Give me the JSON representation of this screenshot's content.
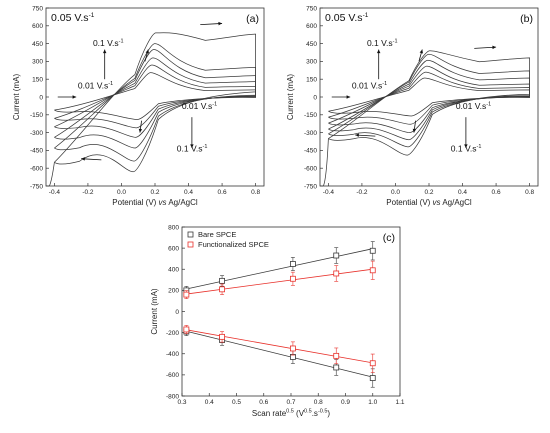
{
  "panel_a": {
    "label": "(a)",
    "top_left_text": "0.05 V.s",
    "top_left_sup": "-1",
    "ann_upper_high": "0.1 V.s",
    "ann_upper_low": "0.01 V.s",
    "ann_lower_low": "0.01 V.s",
    "ann_lower_high": "0.1 V.s",
    "ann_sup": "-1"
  },
  "panel_b": {
    "label": "(b)",
    "top_left_text": "0.05 V.s",
    "top_left_sup": "-1",
    "ann_upper_high": "0.1 V.s",
    "ann_upper_low": "0.01 V.s",
    "ann_lower_low": "0.01 V.s",
    "ann_lower_high": "0.1 V.s",
    "ann_sup": "-1"
  },
  "panel_c": {
    "label": "(c)"
  },
  "shared_xlabel_pre": "Potential (V) ",
  "shared_xlabel_vs": "vs",
  "shared_xlabel_post": " Ag/AgCl",
  "colors": {
    "bare": "#3a3a3a",
    "functionalized": "#e8312b",
    "axis": "#333333"
  },
  "chart_data": [
    {
      "type": "line",
      "panel": "a",
      "xlabel": "Potential (V) vs Ag/AgCl",
      "ylabel": "Current (mA)",
      "xlim": [
        -0.45,
        0.85
      ],
      "ylim": [
        -750,
        750
      ],
      "xticks": [
        "-0.4",
        "-0.2",
        "0.0",
        "0.2",
        "0.4",
        "0.6",
        "0.8"
      ],
      "yticks": [
        "-750",
        "-600",
        "-450",
        "-300",
        "-150",
        "0",
        "150",
        "300",
        "450",
        "600",
        "750"
      ],
      "scans": [
        {
          "anodic_peak": 205,
          "cathodic_peak": -190,
          "upper_end": 60,
          "lower_start": -130
        },
        {
          "anodic_peak": 270,
          "cathodic_peak": -260,
          "upper_end": 90,
          "lower_start": -200
        },
        {
          "anodic_peak": 330,
          "cathodic_peak": -340,
          "upper_end": 130,
          "lower_start": -270
        },
        {
          "anodic_peak": 400,
          "cathodic_peak": -430,
          "upper_end": 180,
          "lower_start": -360
        },
        {
          "anodic_peak": 450,
          "cathodic_peak": -540,
          "upper_end": 250,
          "lower_start": -450
        },
        {
          "anodic_peak": 540,
          "cathodic_peak": -630,
          "upper_end": 530,
          "lower_start": -570
        }
      ]
    },
    {
      "type": "line",
      "panel": "b",
      "xlabel": "Potential (V) vs Ag/AgCl",
      "ylabel": "Current (mA)",
      "xlim": [
        -0.45,
        0.85
      ],
      "ylim": [
        -750,
        750
      ],
      "xticks": [
        "-0.4",
        "-0.2",
        "0.0",
        "0.2",
        "0.4",
        "0.6",
        "0.8"
      ],
      "yticks": [
        "-750",
        "-600",
        "-450",
        "-300",
        "-150",
        "0",
        "150",
        "300",
        "450",
        "600",
        "750"
      ],
      "scans": [
        {
          "anodic_peak": 160,
          "cathodic_peak": -160,
          "upper_end": 60,
          "lower_start": -140
        },
        {
          "anodic_peak": 210,
          "cathodic_peak": -230,
          "upper_end": 80,
          "lower_start": -190
        },
        {
          "anodic_peak": 260,
          "cathodic_peak": -300,
          "upper_end": 110,
          "lower_start": -240
        },
        {
          "anodic_peak": 310,
          "cathodic_peak": -360,
          "upper_end": 160,
          "lower_start": -290
        },
        {
          "anodic_peak": 360,
          "cathodic_peak": -420,
          "upper_end": 220,
          "lower_start": -330
        },
        {
          "anodic_peak": 390,
          "cathodic_peak": -490,
          "upper_end": 330,
          "lower_start": -370
        }
      ]
    },
    {
      "type": "scatter",
      "panel": "c",
      "xlabel": "Scan rate",
      "xlabel_sup": "0.5",
      "xlabel_unit_open": " (V",
      "xlabel_unit_sup1": "0.5",
      "xlabel_unit_mid": ".s",
      "xlabel_unit_sup2": "-0.5",
      "xlabel_unit_close": ")",
      "ylabel": "Current (mA)",
      "xlim": [
        0.3,
        1.1
      ],
      "ylim": [
        -800,
        800
      ],
      "xticks": [
        "0.3",
        "0.4",
        "0.5",
        "0.6",
        "0.7",
        "0.8",
        "0.9",
        "1.0",
        "1.1"
      ],
      "yticks": [
        "-800",
        "-600",
        "-400",
        "-200",
        "0",
        "200",
        "400",
        "600",
        "800"
      ],
      "legend": "top-left",
      "x": [
        0.316,
        0.447,
        0.707,
        0.866,
        1.0
      ],
      "series": [
        {
          "name": "Bare SPCE",
          "group": "anodic",
          "values": [
            200,
            290,
            450,
            530,
            575
          ]
        },
        {
          "name": "Functionalized SPCE",
          "group": "anodic",
          "values": [
            160,
            210,
            310,
            360,
            390
          ]
        },
        {
          "group": "cathodic",
          "values": [
            -190,
            -270,
            -430,
            -530,
            -630
          ]
        },
        {
          "group": "cathodic",
          "values": [
            -170,
            -240,
            -350,
            -420,
            -490
          ]
        }
      ]
    }
  ]
}
